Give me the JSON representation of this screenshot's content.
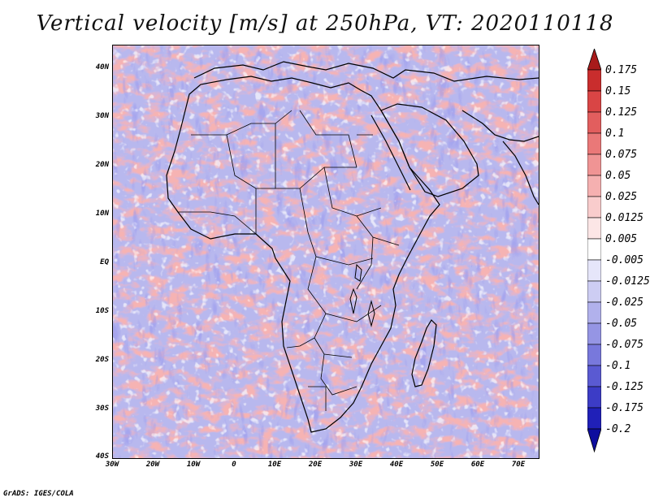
{
  "title": "Vertical velocity [m/s] at 250hPa, VT: 2020110118",
  "credit": "GrADS: IGES/COLA",
  "map": {
    "lat_labels": [
      "40N",
      "30N",
      "20N",
      "10N",
      "EQ",
      "10S",
      "20S",
      "30S",
      "40S"
    ],
    "lon_labels": [
      "30W",
      "20W",
      "10W",
      "0",
      "10E",
      "20E",
      "30E",
      "40E",
      "50E",
      "60E",
      "70E"
    ],
    "lon_range": [
      -30,
      75
    ],
    "lat_range": [
      -40,
      45
    ],
    "variable": "vertical velocity",
    "units": "m/s",
    "level": "250hPa"
  },
  "colorbar": {
    "labels": [
      "0.175",
      "0.15",
      "0.125",
      "0.1",
      "0.075",
      "0.05",
      "0.025",
      "0.0125",
      "0.005",
      "-0.005",
      "-0.0125",
      "-0.025",
      "-0.05",
      "-0.075",
      "-0.1",
      "-0.125",
      "-0.175",
      "-0.2"
    ],
    "colors": [
      "#a81b1b",
      "#c92d2d",
      "#d94545",
      "#e25e5e",
      "#ea7878",
      "#f09494",
      "#f5b0b0",
      "#f9cccc",
      "#fce6e6",
      "#ffffff",
      "#e6e6fa",
      "#cdcdf3",
      "#b1b1ec",
      "#9595e4",
      "#7878dc",
      "#5a5ad2",
      "#3c3cc6",
      "#2020b8",
      "#0d0d9e"
    ]
  }
}
